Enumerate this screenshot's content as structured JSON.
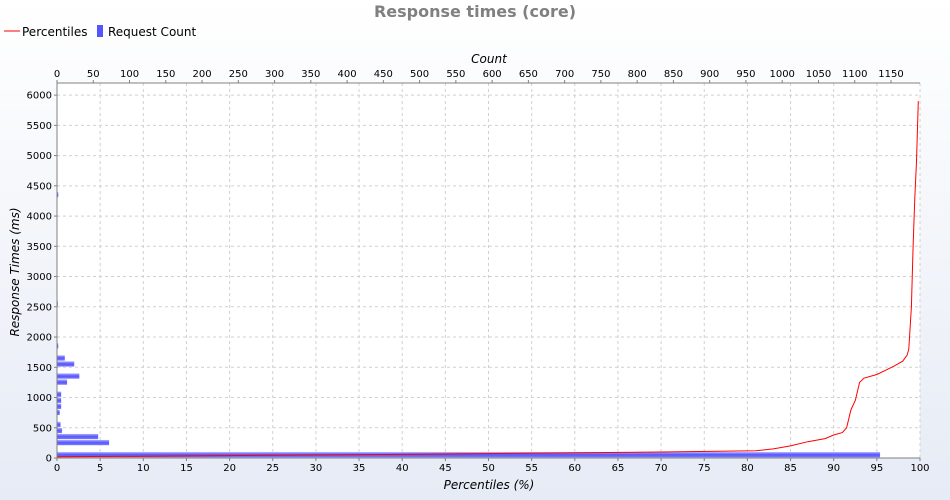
{
  "chart_data": {
    "type": "bar",
    "title": "Response times (core)",
    "legend": {
      "placement": "top-left",
      "items": [
        {
          "label": "Percentiles",
          "color": "#ff0000",
          "kind": "line"
        },
        {
          "label": "Request Count",
          "color": "#5555ff",
          "kind": "bar"
        }
      ]
    },
    "x_bottom": {
      "label": "Percentiles (%)",
      "range": [
        0,
        100
      ],
      "ticks": [
        0,
        5,
        10,
        15,
        20,
        25,
        30,
        35,
        40,
        45,
        50,
        55,
        60,
        65,
        70,
        75,
        80,
        85,
        90,
        95,
        100
      ]
    },
    "x_top": {
      "label": "Count",
      "range": [
        0,
        1190
      ],
      "ticks": [
        0,
        50,
        100,
        150,
        200,
        250,
        300,
        350,
        400,
        450,
        500,
        550,
        600,
        650,
        700,
        750,
        800,
        850,
        900,
        950,
        1000,
        1050,
        1100,
        1150
      ]
    },
    "y": {
      "label": "Response Times (ms)",
      "range": [
        0,
        6200
      ],
      "ticks": [
        0,
        500,
        1000,
        1500,
        2000,
        2500,
        3000,
        3500,
        4000,
        4500,
        5000,
        5500,
        6000
      ]
    },
    "grid": true,
    "series": [
      {
        "name": "Request Count",
        "orientation": "horizontal",
        "bin_size_ms": 100,
        "points": [
          {
            "y": 0,
            "x": 1135
          },
          {
            "y": 200,
            "x": 72
          },
          {
            "y": 300,
            "x": 57
          },
          {
            "y": 400,
            "x": 7
          },
          {
            "y": 500,
            "x": 5
          },
          {
            "y": 700,
            "x": 4
          },
          {
            "y": 800,
            "x": 6
          },
          {
            "y": 900,
            "x": 6
          },
          {
            "y": 1000,
            "x": 6
          },
          {
            "y": 1200,
            "x": 14
          },
          {
            "y": 1300,
            "x": 31
          },
          {
            "y": 1500,
            "x": 24
          },
          {
            "y": 1600,
            "x": 11
          },
          {
            "y": 1800,
            "x": 2
          },
          {
            "y": 2500,
            "x": 1
          },
          {
            "y": 4300,
            "x": 2
          }
        ]
      },
      {
        "name": "Percentiles",
        "points": [
          [
            0,
            20
          ],
          [
            20,
            40
          ],
          [
            40,
            60
          ],
          [
            54,
            80
          ],
          [
            70,
            100
          ],
          [
            81,
            120
          ],
          [
            83,
            150
          ],
          [
            85,
            200
          ],
          [
            87,
            270
          ],
          [
            89,
            320
          ],
          [
            90,
            380
          ],
          [
            91,
            420
          ],
          [
            91.5,
            500
          ],
          [
            92,
            800
          ],
          [
            92.5,
            950
          ],
          [
            93,
            1250
          ],
          [
            93.5,
            1320
          ],
          [
            95,
            1380
          ],
          [
            96,
            1450
          ],
          [
            97,
            1520
          ],
          [
            98,
            1600
          ],
          [
            98.5,
            1700
          ],
          [
            98.7,
            1800
          ],
          [
            99,
            2500
          ],
          [
            99.2,
            3500
          ],
          [
            99.4,
            4300
          ],
          [
            99.6,
            4900
          ],
          [
            99.7,
            5400
          ],
          [
            99.8,
            5900
          ]
        ]
      }
    ]
  }
}
